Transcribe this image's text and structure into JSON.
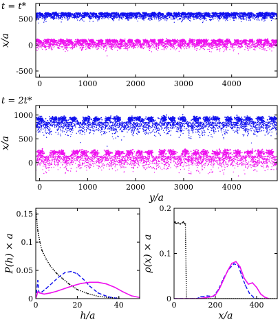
{
  "chart_data": [
    {
      "type": "scatter",
      "panel_label": "t = t*",
      "xlabel": "",
      "ylabel": "x/a",
      "xlim": [
        -80,
        4950
      ],
      "ylim": [
        -620,
        800
      ],
      "xticks": [
        0,
        1000,
        2000,
        3000,
        4000
      ],
      "yticks": [
        -500,
        0,
        500
      ],
      "series": [
        {
          "color": "#1010ee",
          "profile": "bumps",
          "center": 560,
          "spread": 80,
          "n_bumps": 32
        },
        {
          "color": "#ee10ee",
          "profile": "bumps",
          "center": 20,
          "spread": 110,
          "n_bumps": 32
        }
      ]
    },
    {
      "type": "scatter",
      "panel_label": "t = 2t*",
      "xlabel": "y/a",
      "ylabel": "x/a",
      "xlim": [
        -80,
        4950
      ],
      "ylim": [
        -380,
        1200
      ],
      "xticks": [
        0,
        1000,
        2000,
        3000,
        4000
      ],
      "yticks": [
        0,
        500,
        1000
      ],
      "series": [
        {
          "color": "#1010ee",
          "profile": "blobs",
          "center": 780,
          "spread": 200,
          "n_bumps": 22
        },
        {
          "color": "#ee10ee",
          "profile": "blobs",
          "center": 60,
          "spread": 220,
          "n_bumps": 22
        }
      ]
    },
    {
      "type": "line",
      "xlabel": "h/a",
      "ylabel": "P(h) × a",
      "xlim": [
        0,
        50
      ],
      "ylim": [
        0,
        0.16
      ],
      "xticks": [
        0,
        20,
        40
      ],
      "yticks": [
        0,
        0.05,
        0.1,
        0.15
      ],
      "ytick_labels": [
        "0",
        "0.05",
        "0.1",
        "0.15"
      ],
      "series": [
        {
          "color": "#000000",
          "dash": "dotted",
          "x": [
            0,
            0.5,
            1,
            2,
            3,
            5,
            7,
            10,
            13,
            16,
            20,
            25,
            30,
            35,
            40
          ],
          "y": [
            0.16,
            0.14,
            0.12,
            0.1,
            0.085,
            0.07,
            0.058,
            0.045,
            0.035,
            0.026,
            0.016,
            0.009,
            0.004,
            0.002,
            0.001
          ]
        },
        {
          "color": "#1010ee",
          "dash": "dashed",
          "x": [
            0,
            1,
            1.5,
            2,
            3,
            5,
            8,
            11,
            14,
            17,
            20,
            23,
            26,
            30,
            35,
            40
          ],
          "y": [
            0,
            0.032,
            0.012,
            0.01,
            0.012,
            0.018,
            0.028,
            0.038,
            0.046,
            0.048,
            0.044,
            0.034,
            0.022,
            0.01,
            0.003,
            0
          ]
        },
        {
          "color": "#ee10ee",
          "dash": "solid",
          "x": [
            0,
            1,
            2,
            4,
            7,
            10,
            14,
            18,
            22,
            26,
            30,
            34,
            38,
            42,
            46,
            50
          ],
          "y": [
            0,
            0.012,
            0.01,
            0.008,
            0.01,
            0.013,
            0.018,
            0.023,
            0.027,
            0.029,
            0.029,
            0.026,
            0.02,
            0.012,
            0.005,
            0.002
          ]
        }
      ]
    },
    {
      "type": "line",
      "xlabel": "x/a",
      "ylabel": "ρ(x) × a",
      "xlim": [
        0,
        500
      ],
      "ylim": [
        0,
        0.2
      ],
      "xticks": [
        0,
        200,
        400
      ],
      "yticks": [
        0,
        0.1,
        0.2
      ],
      "ytick_labels": [
        "0",
        "0.1",
        "0.2"
      ],
      "series": [
        {
          "color": "#000000",
          "dash": "dotted",
          "x": [
            0,
            5,
            10,
            20,
            30,
            40,
            45,
            50,
            55,
            60,
            500
          ],
          "y": [
            0.168,
            0.17,
            0.166,
            0.168,
            0.165,
            0.168,
            0.17,
            0.166,
            0.165,
            0,
            0
          ]
        },
        {
          "color": "#1010ee",
          "dash": "dashed",
          "x": [
            0,
            110,
            130,
            160,
            190,
            215,
            240,
            265,
            290,
            310,
            325,
            345,
            365,
            385,
            400,
            420
          ],
          "y": [
            0,
            0,
            0.004,
            0.006,
            0.005,
            0.02,
            0.045,
            0.065,
            0.077,
            0.074,
            0.055,
            0.03,
            0.012,
            0.003,
            0,
            0
          ]
        },
        {
          "color": "#ee10ee",
          "dash": "solid",
          "x": [
            0,
            120,
            150,
            180,
            200,
            220,
            240,
            260,
            280,
            300,
            320,
            340,
            360,
            380,
            400,
            420,
            440,
            460
          ],
          "y": [
            0,
            0,
            0.002,
            0.004,
            0.008,
            0.022,
            0.042,
            0.062,
            0.078,
            0.082,
            0.07,
            0.045,
            0.032,
            0.035,
            0.025,
            0.01,
            0.003,
            0
          ]
        }
      ]
    }
  ]
}
